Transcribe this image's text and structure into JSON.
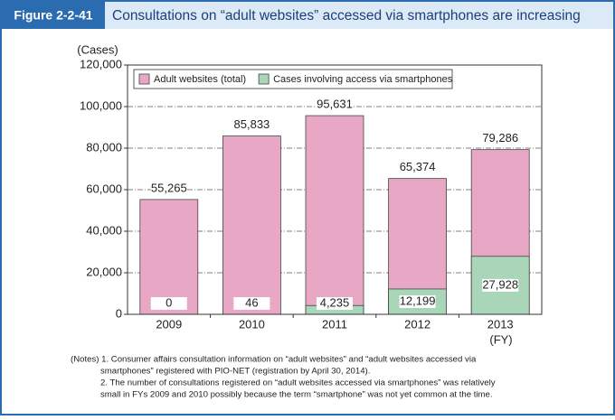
{
  "chart_data": {
    "type": "bar",
    "figure_label": "Figure 2-2-41",
    "title": "Consultations on “adult websites” accessed via smartphones are increasing",
    "y_label": "(Cases)",
    "x_label": "(FY)",
    "categories": [
      "2009",
      "2010",
      "2011",
      "2012",
      "2013"
    ],
    "series": [
      {
        "name": "Adult websites (total)",
        "color": "#e9a7c6",
        "values": [
          55265,
          85833,
          95631,
          65374,
          79286
        ],
        "value_labels": [
          "55,265",
          "85,833",
          "95,631",
          "65,374",
          "79,286"
        ]
      },
      {
        "name": "Cases involving access via smartphones",
        "color": "#a9d5b9",
        "values": [
          0,
          46,
          4235,
          12199,
          27928
        ],
        "value_labels": [
          "0",
          "46",
          "4,235",
          "12,199",
          "27,928"
        ]
      }
    ],
    "ylim": [
      0,
      120000
    ],
    "yticks": [
      0,
      {
        "value": 20000,
        "label": "20,000"
      },
      {
        "value": 40000,
        "label": "40,000"
      },
      {
        "value": 60000,
        "label": "60,000"
      },
      {
        "value": 80000,
        "label": "80,000"
      },
      {
        "value": 100000,
        "label": "100,000"
      },
      {
        "value": 120000,
        "label": "120,000"
      }
    ],
    "grid": true,
    "notes": [
      "(Notes) 1. Consumer affairs consultation information on “adult websites” and “adult websites accessed via",
      "smartphones” registered with PIO-NET (registration by April 30, 2014).",
      "2. The number of consultations registered on “adult websites accessed via smartphones” was relatively",
      "small in FYs 2009 and 2010 possibly because the term “smartphone” was not yet common at the time."
    ]
  }
}
